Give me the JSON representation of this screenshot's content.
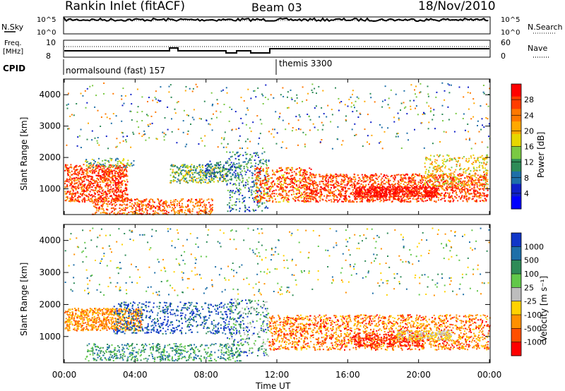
{
  "header": {
    "title": "Rankin Inlet (fitACF)",
    "beam": "Beam 03",
    "date": "18/Nov/2010"
  },
  "sky_panel": {
    "left_label": "N.Sky",
    "right_label": "N.Search",
    "left_ticks": [
      "10^5",
      "10^0"
    ],
    "right_ticks": [
      "10^5",
      "10^0"
    ]
  },
  "freq_panel": {
    "left_label_1": "Freq.",
    "left_label_2": "[MHz]",
    "right_label": "Nave",
    "left_ticks": [
      "10",
      "8"
    ],
    "right_ticks": [
      "60",
      "0"
    ]
  },
  "cpid": {
    "label": "CPID",
    "program_1": "normalsound (fast) 157",
    "program_2": "themis 3300"
  },
  "chart_data": [
    {
      "type": "heatmap",
      "panel": "power",
      "ylabel": "Slant Range [km]",
      "yticks": [
        "4000",
        "3000",
        "2000",
        "1000"
      ],
      "ylim": [
        180,
        4500
      ],
      "xlabel": "Time UT",
      "x_ticks": [
        "00:00",
        "04:00",
        "08:00",
        "12:00",
        "16:00",
        "20:00",
        "00:00"
      ],
      "colorbar_label": "Power [dB]",
      "colorbar_ticks": [
        "28",
        "24",
        "20",
        "16",
        "12",
        "8",
        "4"
      ],
      "colorbar_colors": [
        "#ff0000",
        "#ff3c00",
        "#ff7800",
        "#ffa800",
        "#e6d700",
        "#7ac943",
        "#2e8b57",
        "#1e6fa8",
        "#1020c8",
        "#0000ff"
      ]
    },
    {
      "type": "heatmap",
      "panel": "velocity",
      "ylabel": "Slant Range [km]",
      "yticks": [
        "4000",
        "3000",
        "2000",
        "1000"
      ],
      "ylim": [
        180,
        4500
      ],
      "xlabel": "Time UT",
      "x_ticks": [
        "00:00",
        "04:00",
        "08:00",
        "12:00",
        "16:00",
        "20:00",
        "00:00"
      ],
      "colorbar_label": "Velocity [m s⁻¹]",
      "colorbar_ticks": [
        "1000",
        "500",
        "100",
        "25",
        "-25",
        "-100",
        "-500",
        "-1000"
      ],
      "colorbar_colors": [
        "#1036c8",
        "#1e6fa8",
        "#2e8b57",
        "#62c84a",
        "#bdbdbd",
        "#ffd200",
        "#ff9000",
        "#ff5000",
        "#ff0000"
      ]
    }
  ]
}
